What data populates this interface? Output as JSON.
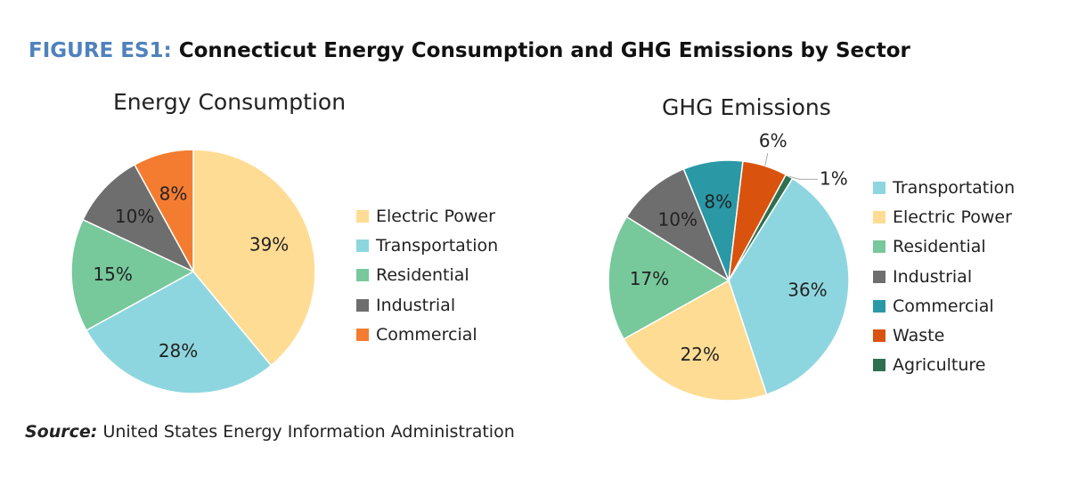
{
  "figure_label": "FIGURE ES1:",
  "figure_title": "Connecticut Energy Consumption and GHG Emissions by Sector",
  "source_label": "Source:",
  "source_text": "United States Energy Information Administration",
  "chart_data": [
    {
      "type": "pie",
      "title": "Energy Consumption",
      "legend": "right",
      "slices": [
        {
          "name": "Electric Power",
          "value": 39,
          "label": "39%",
          "color": "#fedc94"
        },
        {
          "name": "Transportation",
          "value": 28,
          "label": "28%",
          "color": "#8ed6df"
        },
        {
          "name": "Residential",
          "value": 15,
          "label": "15%",
          "color": "#77c89b"
        },
        {
          "name": "Industrial",
          "value": 10,
          "label": "10%",
          "color": "#6e6e6e"
        },
        {
          "name": "Commercial",
          "value": 8,
          "label": "8%",
          "color": "#f47c30"
        }
      ]
    },
    {
      "type": "pie",
      "title": "GHG Emissions",
      "legend": "right",
      "slices": [
        {
          "name": "Transportation",
          "value": 36,
          "label": "36%",
          "color": "#8ed6df"
        },
        {
          "name": "Electric Power",
          "value": 22,
          "label": "22%",
          "color": "#fedc94"
        },
        {
          "name": "Residential",
          "value": 17,
          "label": "17%",
          "color": "#77c89b"
        },
        {
          "name": "Industrial",
          "value": 10,
          "label": "10%",
          "color": "#6e6e6e"
        },
        {
          "name": "Commercial",
          "value": 8,
          "label": "8%",
          "color": "#2a98a5"
        },
        {
          "name": "Waste",
          "value": 6,
          "label": "6%",
          "color": "#d9530e"
        },
        {
          "name": "Agriculture",
          "value": 1,
          "label": "1%",
          "color": "#2e7050"
        }
      ]
    }
  ]
}
